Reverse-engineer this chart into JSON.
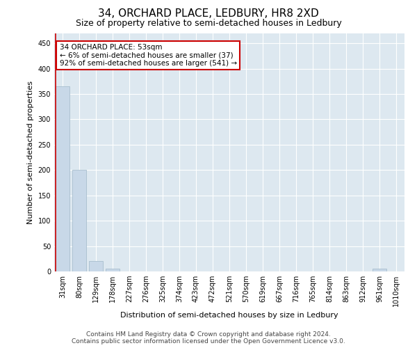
{
  "title": "34, ORCHARD PLACE, LEDBURY, HR8 2XD",
  "subtitle": "Size of property relative to semi-detached houses in Ledbury",
  "xlabel": "Distribution of semi-detached houses by size in Ledbury",
  "ylabel": "Number of semi-detached properties",
  "bar_labels": [
    "31sqm",
    "80sqm",
    "129sqm",
    "178sqm",
    "227sqm",
    "276sqm",
    "325sqm",
    "374sqm",
    "423sqm",
    "472sqm",
    "521sqm",
    "570sqm",
    "619sqm",
    "667sqm",
    "716sqm",
    "765sqm",
    "814sqm",
    "863sqm",
    "912sqm",
    "961sqm",
    "1010sqm"
  ],
  "bar_values": [
    365,
    200,
    20,
    5,
    0,
    0,
    0,
    0,
    0,
    0,
    0,
    0,
    0,
    0,
    0,
    0,
    0,
    0,
    0,
    5,
    0
  ],
  "bar_color": "#c8d8e8",
  "bar_edgecolor": "#a8bece",
  "property_line_color": "#cc0000",
  "annotation_title": "34 ORCHARD PLACE: 53sqm",
  "annotation_line1": "← 6% of semi-detached houses are smaller (37)",
  "annotation_line2": "92% of semi-detached houses are larger (541) →",
  "annotation_box_facecolor": "#ffffff",
  "annotation_box_edgecolor": "#cc0000",
  "ylim": [
    0,
    470
  ],
  "yticks": [
    0,
    50,
    100,
    150,
    200,
    250,
    300,
    350,
    400,
    450
  ],
  "footer1": "Contains HM Land Registry data © Crown copyright and database right 2024.",
  "footer2": "Contains public sector information licensed under the Open Government Licence v3.0.",
  "background_color": "#dde8f0",
  "grid_color": "#ffffff",
  "title_fontsize": 11,
  "subtitle_fontsize": 9,
  "ylabel_fontsize": 8,
  "xlabel_fontsize": 8,
  "tick_fontsize": 7,
  "annotation_fontsize": 7.5,
  "footer_fontsize": 6.5
}
